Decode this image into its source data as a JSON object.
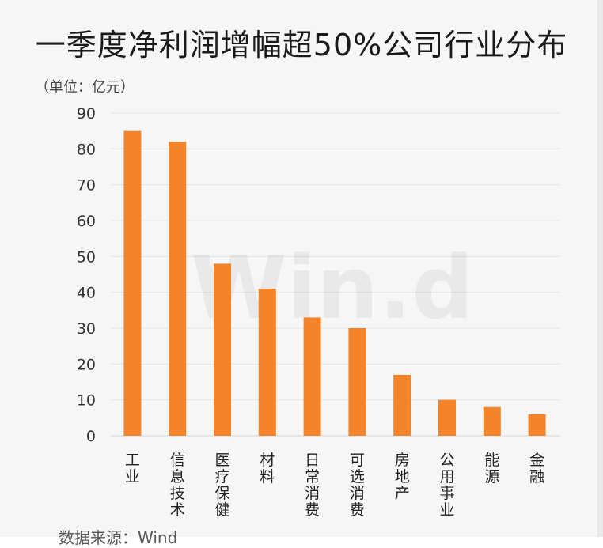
{
  "chart_data": {
    "type": "bar",
    "title": "一季度净利润增幅超50%公司行业分布",
    "unit_label": "（单位：亿元）",
    "categories": [
      "工业",
      "信息技术",
      "医疗保健",
      "材料",
      "日常消费",
      "可选消费",
      "房地产",
      "公用事业",
      "能源",
      "金融"
    ],
    "values": [
      85,
      82,
      48,
      41,
      33,
      30,
      17,
      10,
      8,
      6
    ],
    "ylim": [
      0,
      90
    ],
    "yticks": [
      0,
      10,
      20,
      30,
      40,
      50,
      60,
      70,
      80,
      90
    ],
    "xlabel": "",
    "ylabel": "",
    "grid": true,
    "bar_color": "#f5832a",
    "watermark": "Win.d",
    "source": "数据来源：Wind"
  }
}
